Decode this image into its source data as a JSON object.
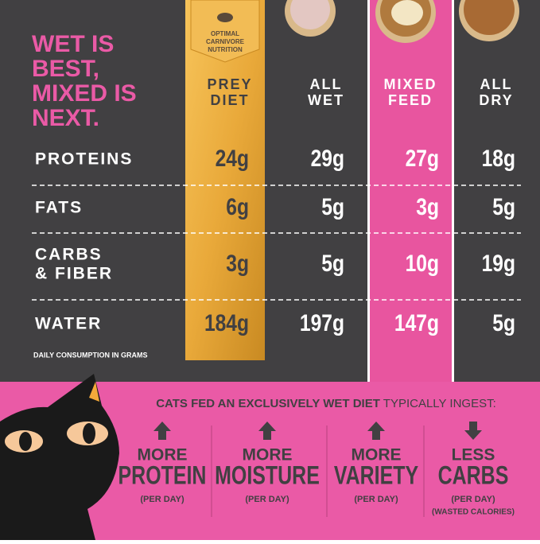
{
  "headline": [
    "WET IS",
    "BEST,",
    "MIXED IS",
    "NEXT."
  ],
  "badge": [
    "OPTIMAL",
    "CARNIVORE",
    "NUTRITION"
  ],
  "columns": [
    [
      "PREY",
      "DIET"
    ],
    [
      "ALL",
      "WET"
    ],
    [
      "MIXED",
      "FEED"
    ],
    [
      "ALL",
      "DRY"
    ]
  ],
  "rows": [
    {
      "label": [
        "PROTEINS"
      ],
      "cells": [
        "24g",
        "29g",
        "27g",
        "18g"
      ]
    },
    {
      "label": [
        "FATS"
      ],
      "cells": [
        "6g",
        "5g",
        "3g",
        "5g"
      ]
    },
    {
      "label": [
        "CARBS",
        "& FIBER"
      ],
      "cells": [
        "3g",
        "5g",
        "10g",
        "19g"
      ]
    },
    {
      "label": [
        "WATER"
      ],
      "cells": [
        "184g",
        "197g",
        "147g",
        "5g"
      ]
    }
  ],
  "footnote": "DAILY CONSUMPTION IN GRAMS",
  "callout": {
    "bold": "CATS FED AN EXCLUSIVELY WET DIET",
    "rest": " TYPICALLY INGEST:"
  },
  "benefits": [
    {
      "qualifier": "MORE",
      "item": "PROTEIN",
      "notes": [
        "(PER DAY)"
      ]
    },
    {
      "qualifier": "MORE",
      "item": "MOISTURE",
      "notes": [
        "(PER DAY)"
      ]
    },
    {
      "qualifier": "MORE",
      "item": "VARIETY",
      "notes": [
        "(PER DAY)"
      ]
    },
    {
      "qualifier": "LESS",
      "item": "CARBS",
      "notes": [
        "(PER DAY)",
        "(WASTED CALORIES)"
      ]
    }
  ]
}
